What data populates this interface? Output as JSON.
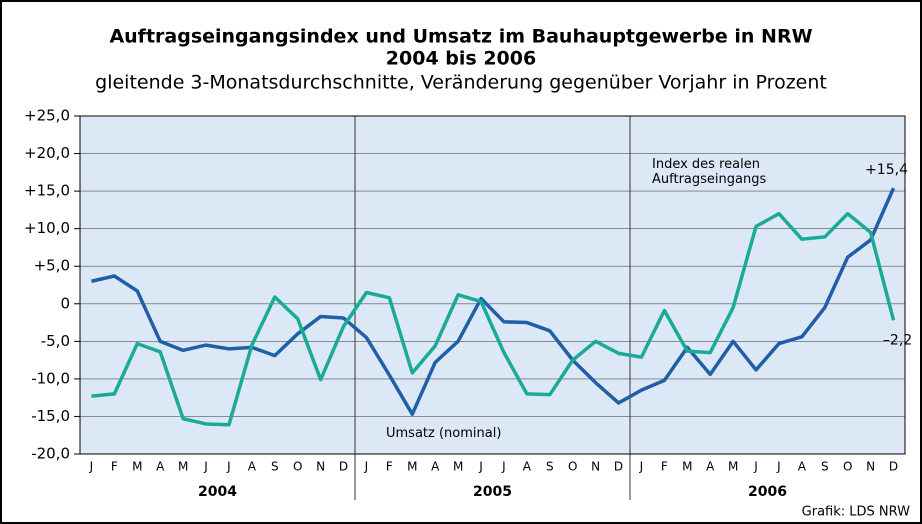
{
  "chart_data": {
    "type": "line",
    "title": [
      "Auftragseingangsindex und Umsatz im Bauhauptgewerbe in NRW",
      "2004 bis 2006"
    ],
    "subtitle": "gleitende 3-Monatsdurchschnitte, Veränderung gegenüber Vorjahr in Prozent",
    "source": "Grafik: LDS NRW",
    "categories": [
      "J",
      "F",
      "M",
      "A",
      "M",
      "J",
      "J",
      "A",
      "S",
      "O",
      "N",
      "D",
      "J",
      "F",
      "M",
      "A",
      "M",
      "J",
      "J",
      "A",
      "S",
      "O",
      "N",
      "D",
      "J",
      "F",
      "M",
      "A",
      "M",
      "J",
      "J",
      "A",
      "S",
      "O",
      "N",
      "D"
    ],
    "years": [
      "2004",
      "2005",
      "2006"
    ],
    "series": [
      {
        "name": "Umsatz (nominal)",
        "color": "#1f5fa8",
        "values": [
          3.0,
          3.7,
          1.7,
          -5.0,
          -6.2,
          -5.5,
          -6.0,
          -5.8,
          -6.9,
          -4.0,
          -1.7,
          -1.9,
          -4.5,
          -9.5,
          -14.7,
          -7.8,
          -5.0,
          0.7,
          -2.4,
          -2.5,
          -3.6,
          -7.5,
          -10.5,
          -13.2,
          -11.5,
          -10.2,
          -5.8,
          -9.4,
          -5.0,
          -8.8,
          -5.3,
          -4.4,
          -0.5,
          6.2,
          8.5,
          15.4
        ],
        "value_labels": [
          null,
          null,
          null,
          null,
          null,
          null,
          null,
          null,
          null,
          null,
          null,
          null,
          null,
          null,
          null,
          null,
          null,
          null,
          null,
          null,
          null,
          null,
          null,
          null,
          null,
          null,
          null,
          null,
          null,
          null,
          null,
          null,
          null,
          null,
          null,
          "+15,4"
        ]
      },
      {
        "name": "Index des realen Auftragseingangs",
        "color": "#1aab96",
        "values": [
          -12.3,
          -12.0,
          -5.3,
          -6.4,
          -15.3,
          -16.0,
          -16.1,
          -5.5,
          0.9,
          -2.0,
          -10.1,
          -3.0,
          1.5,
          0.8,
          -9.2,
          -5.6,
          1.2,
          0.3,
          -6.5,
          -12.0,
          -12.1,
          -7.5,
          -5.0,
          -6.6,
          -7.1,
          -0.9,
          -6.3,
          -6.5,
          -0.5,
          10.3,
          12.0,
          8.6,
          8.9,
          12.0,
          9.5,
          -2.2
        ],
        "value_labels": [
          null,
          null,
          null,
          null,
          null,
          null,
          null,
          null,
          null,
          null,
          null,
          null,
          null,
          null,
          null,
          null,
          null,
          null,
          null,
          null,
          null,
          null,
          null,
          null,
          null,
          null,
          null,
          null,
          null,
          null,
          null,
          null,
          null,
          null,
          null,
          "–2,2"
        ]
      }
    ],
    "ylim": [
      -20,
      25
    ],
    "yticks": [
      {
        "value": -20,
        "label": "-20,0"
      },
      {
        "value": -15,
        "label": "-15,0"
      },
      {
        "value": -10,
        "label": "-10,0"
      },
      {
        "value": -5,
        "label": "-5,0"
      },
      0,
      {
        "value": 5,
        "label": "+5,0"
      },
      {
        "value": 10,
        "label": "+10,0"
      },
      {
        "value": 15,
        "label": "+15,0"
      },
      {
        "value": 20,
        "label": "+20,0"
      },
      {
        "value": 25,
        "label": "+25,0"
      }
    ],
    "grid": true
  }
}
